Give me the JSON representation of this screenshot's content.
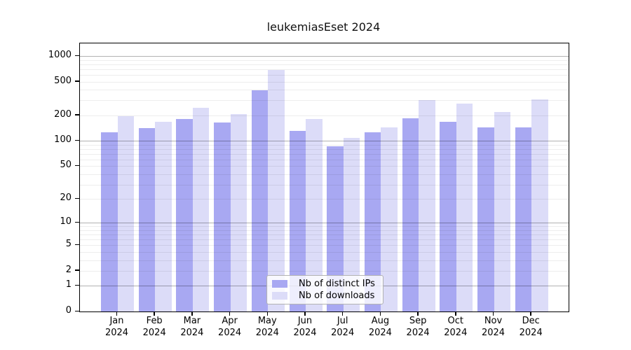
{
  "chart_data": {
    "type": "bar",
    "title": "leukemiasEset 2024",
    "categories": [
      "Jan",
      "Feb",
      "Mar",
      "Apr",
      "May",
      "Jun",
      "Jul",
      "Aug",
      "Sep",
      "Oct",
      "Nov",
      "Dec"
    ],
    "x_year_label": "2024",
    "series": [
      {
        "name": "Nb of distinct IPs",
        "color": "#a8a8f2",
        "values": [
          126,
          141,
          181,
          166,
          395,
          131,
          86,
          126,
          184,
          168,
          145,
          145
        ]
      },
      {
        "name": "Nb of downloads",
        "color": "#dcdcf8",
        "values": [
          196,
          168,
          246,
          209,
          686,
          181,
          108,
          144,
          303,
          275,
          219,
          309
        ]
      }
    ],
    "y_ticks": [
      0,
      1,
      2,
      5,
      10,
      20,
      50,
      100,
      200,
      500,
      1000
    ],
    "y_scale": "log10(value+1)",
    "ylim": [
      0,
      1400
    ],
    "xlabel": "",
    "ylabel": "",
    "grid": "horizontal",
    "legend_position": "bottom-center"
  },
  "colors": {
    "background": "#ffffff",
    "axis": "#000000",
    "grid_minor": "rgba(0,0,0,0.07)",
    "grid_decade": "rgba(0,0,0,0.30)",
    "bar_distinct_ips": "#a8a8f2",
    "bar_downloads": "#dcdcf8"
  }
}
